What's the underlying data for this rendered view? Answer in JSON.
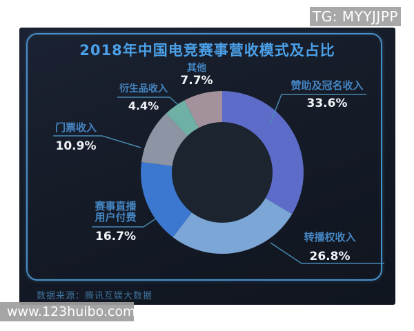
{
  "overlays": {
    "tg_badge": "TG: MYYJJPP",
    "watermark": "www.123huibo.com"
  },
  "panel": {
    "title": "2018年中国电竞赛事营收模式及占比",
    "source": "数据来源：腾讯互娱大数据"
  },
  "colors": {
    "accent_border": "#4a90c8",
    "title_text": "#4ba0e8",
    "label_text": "#4585c2",
    "pct_text": "#f2f4f8",
    "leader_line": "#4a8fb8",
    "panel_bg": "#151b27",
    "donut_hole": "#1c2430",
    "badge_bg": "#a8a8a8"
  },
  "chart_data": {
    "type": "pie",
    "subtype": "donut",
    "title": "2018年中国电竞赛事营收模式及占比",
    "source": "数据来源：腾讯互娱大数据",
    "start_angle_deg": 0,
    "clockwise": true,
    "inner_radius_ratio": 0.62,
    "legend": "none",
    "slices": [
      {
        "name": "赞助及冠名收入",
        "value": 33.6,
        "pct": "33.6%",
        "color": "#5d6cc8"
      },
      {
        "name": "转播权收入",
        "value": 26.8,
        "pct": "26.8%",
        "color": "#7ba6d6"
      },
      {
        "name": "赛事直播用户付费",
        "label_lines": [
          "赛事直播",
          "用户付费"
        ],
        "value": 16.7,
        "pct": "16.7%",
        "color": "#3c77d0"
      },
      {
        "name": "门票收入",
        "value": 10.9,
        "pct": "10.9%",
        "color": "#8d95a4"
      },
      {
        "name": "衍生品收入",
        "value": 4.4,
        "pct": "4.4%",
        "color": "#6fb0a5"
      },
      {
        "name": "其他",
        "value": 7.7,
        "pct": "7.7%",
        "color": "#a3929b"
      }
    ]
  }
}
